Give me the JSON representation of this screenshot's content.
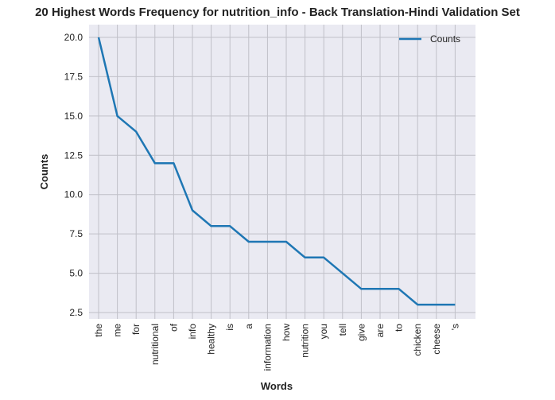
{
  "chart_data": {
    "type": "line",
    "title": "20 Highest Words Frequency for nutrition_info - Back Translation-Hindi Validation Set",
    "xlabel": "Words",
    "ylabel": "Counts",
    "categories": [
      "the",
      "me",
      "for",
      "nutritional",
      "of",
      "info",
      "healthy",
      "is",
      "a",
      "information",
      "how",
      "nutrition",
      "you",
      "tell",
      "give",
      "are",
      "to",
      "chicken",
      "cheese",
      "'s"
    ],
    "series": [
      {
        "name": "Counts",
        "values": [
          20,
          15,
          14,
          12,
          12,
          9,
          8,
          8,
          7,
          7,
          7,
          6,
          6,
          5,
          4,
          4,
          4,
          3,
          3,
          3
        ]
      }
    ],
    "ylim": [
      2.5,
      20.0
    ],
    "yticks": [
      "2.5",
      "5.0",
      "7.5",
      "10.0",
      "12.5",
      "15.0",
      "17.5",
      "20.0"
    ],
    "grid": true,
    "legend_position": "top-right",
    "colors": {
      "line": "#1f77b4",
      "plot_background": "#eaeaf2",
      "grid": "#c0c0c8"
    }
  }
}
